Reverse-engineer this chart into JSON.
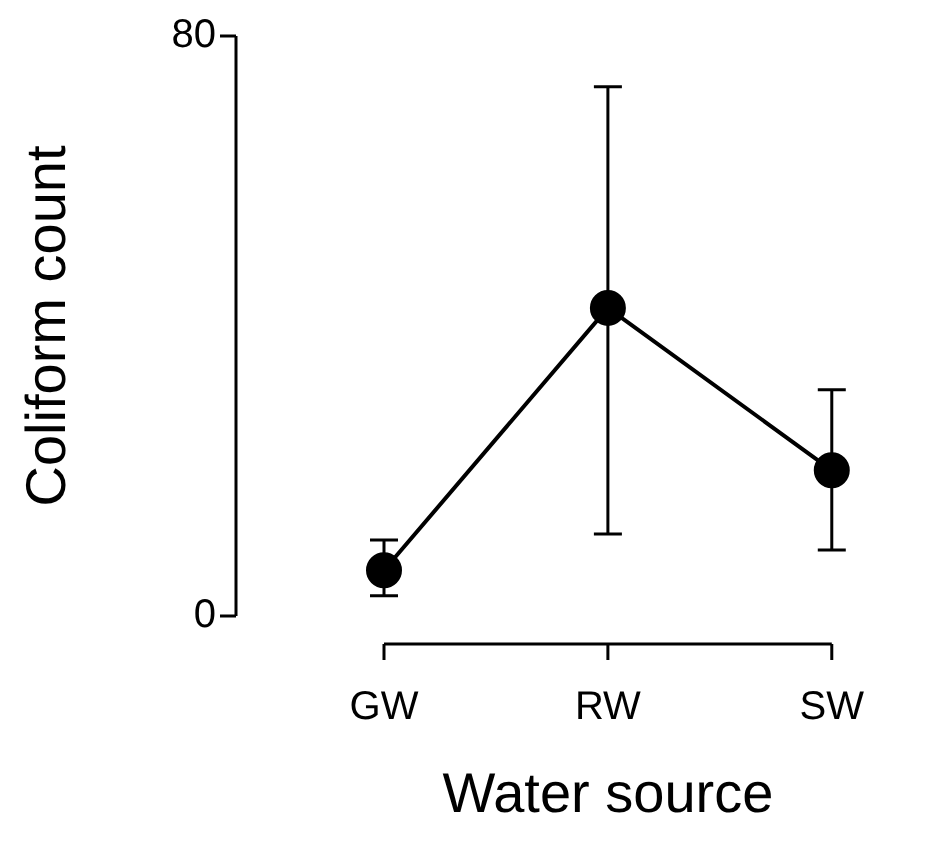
{
  "chart_data": {
    "type": "line",
    "xlabel": "Water source",
    "ylabel": "Coliform count",
    "categories": [
      "GW",
      "RW",
      "SW"
    ],
    "values": [
      6.3,
      42.5,
      20.1
    ],
    "errors": [
      [
        2.8,
        10.5
      ],
      [
        11.3,
        73
      ],
      [
        9.1,
        31.2
      ]
    ],
    "color": "#000000",
    "marker": "circle",
    "line_style": "solid",
    "ylim": [
      0,
      80
    ],
    "yticks": [
      0,
      80
    ],
    "grid": false,
    "legend": false
  }
}
